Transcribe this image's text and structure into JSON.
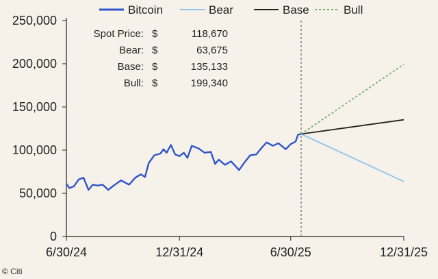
{
  "chart_data": {
    "type": "line",
    "title": "",
    "xlabel": "",
    "ylabel": "",
    "xlim": [
      "2024-06-30",
      "2025-12-31"
    ],
    "ylim": [
      0,
      250000
    ],
    "x_ticks": [
      "6/30/24",
      "12/31/24",
      "6/30/25",
      "12/31/25"
    ],
    "y_ticks": [
      "0",
      "50,000",
      "100,000",
      "150,000",
      "200,000",
      "250,000"
    ],
    "grid": false,
    "legend_position": "top",
    "series": [
      {
        "name": "Bitcoin",
        "color": "#2f55c8",
        "style": "solid",
        "points": [
          [
            "2024-06-30",
            61000
          ],
          [
            "2024-07-05",
            56000
          ],
          [
            "2024-07-12",
            58000
          ],
          [
            "2024-07-20",
            66000
          ],
          [
            "2024-07-28",
            68000
          ],
          [
            "2024-08-05",
            54000
          ],
          [
            "2024-08-12",
            60000
          ],
          [
            "2024-08-20",
            59000
          ],
          [
            "2024-08-28",
            60000
          ],
          [
            "2024-09-06",
            54000
          ],
          [
            "2024-09-15",
            59000
          ],
          [
            "2024-09-27",
            65000
          ],
          [
            "2024-10-10",
            60000
          ],
          [
            "2024-10-20",
            68000
          ],
          [
            "2024-10-29",
            72000
          ],
          [
            "2024-11-05",
            69000
          ],
          [
            "2024-11-11",
            85000
          ],
          [
            "2024-11-20",
            94000
          ],
          [
            "2024-11-30",
            96000
          ],
          [
            "2024-12-05",
            101000
          ],
          [
            "2024-12-10",
            97000
          ],
          [
            "2024-12-17",
            106000
          ],
          [
            "2024-12-24",
            95000
          ],
          [
            "2024-12-31",
            93000
          ],
          [
            "2025-01-07",
            97000
          ],
          [
            "2025-01-13",
            91000
          ],
          [
            "2025-01-20",
            105000
          ],
          [
            "2025-01-31",
            102000
          ],
          [
            "2025-02-10",
            97000
          ],
          [
            "2025-02-20",
            98000
          ],
          [
            "2025-02-27",
            84000
          ],
          [
            "2025-03-05",
            89000
          ],
          [
            "2025-03-15",
            83000
          ],
          [
            "2025-03-25",
            87000
          ],
          [
            "2025-04-07",
            77000
          ],
          [
            "2025-04-15",
            85000
          ],
          [
            "2025-04-25",
            94000
          ],
          [
            "2025-05-05",
            95000
          ],
          [
            "2025-05-14",
            103000
          ],
          [
            "2025-05-22",
            109000
          ],
          [
            "2025-06-01",
            105000
          ],
          [
            "2025-06-10",
            108000
          ],
          [
            "2025-06-22",
            101000
          ],
          [
            "2025-06-30",
            107000
          ],
          [
            "2025-07-08",
            110000
          ],
          [
            "2025-07-12",
            118000
          ],
          [
            "2025-07-17",
            118670
          ]
        ]
      },
      {
        "name": "Bear",
        "color": "#8cc4ec",
        "style": "solid",
        "points": [
          [
            "2025-07-17",
            118670
          ],
          [
            "2025-12-31",
            63675
          ]
        ]
      },
      {
        "name": "Base",
        "color": "#222222",
        "style": "solid",
        "points": [
          [
            "2025-07-17",
            118670
          ],
          [
            "2025-12-31",
            135133
          ]
        ]
      },
      {
        "name": "Bull",
        "color": "#6cb06c",
        "style": "dashed",
        "points": [
          [
            "2025-07-17",
            118670
          ],
          [
            "2025-12-31",
            199340
          ]
        ]
      }
    ],
    "reference_line": {
      "x": "2025-07-17",
      "style": "dashed",
      "color": "#666666"
    },
    "annotation_table": [
      {
        "label": "Spot Price:",
        "currency": "$",
        "value": "118,670"
      },
      {
        "label": "Bear:",
        "currency": "$",
        "value": "63,675"
      },
      {
        "label": "Base:",
        "currency": "$",
        "value": "135,133"
      },
      {
        "label": "Bull:",
        "currency": "$",
        "value": "199,340"
      }
    ]
  },
  "source_credit": "© Citi"
}
